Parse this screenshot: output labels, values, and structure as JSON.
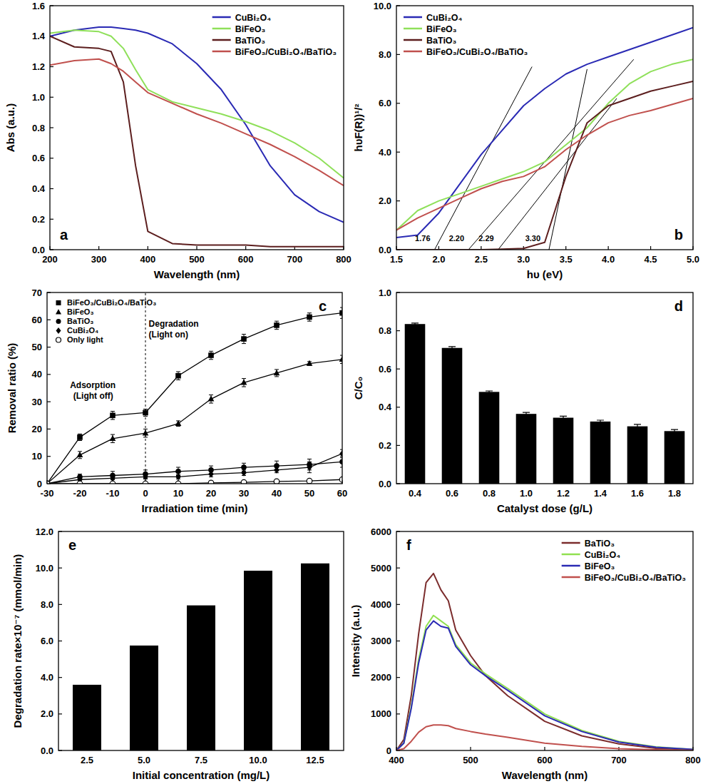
{
  "chart_data": [
    {
      "type": "line",
      "title": "a",
      "x_label": "Wavelength (nm)",
      "y_label": "Abs (a.u.)",
      "x": [
        200,
        250,
        300,
        325,
        350,
        375,
        400,
        450,
        500,
        550,
        600,
        650,
        700,
        750,
        800
      ],
      "series": [
        {
          "name": "CuBi₂O₄",
          "color": "#2a2ab4",
          "values": [
            1.4,
            1.44,
            1.46,
            1.46,
            1.45,
            1.44,
            1.42,
            1.35,
            1.22,
            1.05,
            0.82,
            0.55,
            0.36,
            0.25,
            0.18
          ]
        },
        {
          "name": "BiFeO₃",
          "color": "#8fe05a",
          "values": [
            1.42,
            1.44,
            1.43,
            1.4,
            1.32,
            1.18,
            1.05,
            0.97,
            0.93,
            0.89,
            0.84,
            0.78,
            0.7,
            0.6,
            0.47
          ]
        },
        {
          "name": "BaTiO₃",
          "color": "#5c1e1e",
          "values": [
            1.4,
            1.33,
            1.32,
            1.3,
            1.1,
            0.55,
            0.12,
            0.04,
            0.03,
            0.03,
            0.03,
            0.02,
            0.02,
            0.02,
            0.02
          ]
        },
        {
          "name": "BiFeO₃/CuBi₂O₄/BaTiO₃",
          "color": "#c0504d",
          "values": [
            1.21,
            1.24,
            1.25,
            1.22,
            1.17,
            1.1,
            1.03,
            0.96,
            0.89,
            0.83,
            0.76,
            0.69,
            0.61,
            0.52,
            0.42
          ]
        }
      ],
      "xlim": [
        200,
        800
      ],
      "xticks": [
        200,
        300,
        400,
        500,
        600,
        700,
        800
      ],
      "ylim": [
        0,
        1.6
      ],
      "yticks": [
        {
          "value": 0,
          "label": "0.0"
        },
        0.2,
        0.4,
        0.6,
        0.8,
        {
          "value": 1,
          "label": "1.0"
        },
        1.2,
        1.4,
        1.6
      ],
      "legend": "upper right",
      "grid": false
    },
    {
      "type": "line",
      "title": "b",
      "x_label": "hυ (eV)",
      "y_label": "hυF(R))¹/²",
      "x": [
        1.5,
        1.75,
        2.0,
        2.25,
        2.5,
        2.75,
        3.0,
        3.25,
        3.5,
        3.75,
        4.0,
        4.25,
        4.5,
        4.75,
        5.0
      ],
      "series": [
        {
          "name": "CuBi₂O₄",
          "color": "#2a2ab4",
          "values": [
            0.5,
            0.6,
            1.5,
            2.7,
            3.9,
            4.9,
            5.9,
            6.6,
            7.2,
            7.6,
            7.9,
            8.2,
            8.5,
            8.8,
            9.1
          ]
        },
        {
          "name": "BiFeO₃",
          "color": "#8fe05a",
          "values": [
            0.8,
            1.6,
            2.0,
            2.3,
            2.6,
            2.9,
            3.2,
            3.6,
            4.3,
            5.0,
            6.0,
            6.8,
            7.3,
            7.6,
            7.8
          ]
        },
        {
          "name": "BaTiO₃",
          "color": "#5c1e1e",
          "values": [
            0,
            0,
            0,
            0,
            0,
            0.02,
            0.05,
            0.3,
            3.0,
            5.2,
            5.9,
            6.2,
            6.5,
            6.7,
            6.9
          ]
        },
        {
          "name": "BiFeO₃/CuBi₂O₄/BaTiO₃",
          "color": "#c0504d",
          "values": [
            0.8,
            1.3,
            1.7,
            2.1,
            2.5,
            2.8,
            3.0,
            3.4,
            4.1,
            4.7,
            5.2,
            5.5,
            5.7,
            5.95,
            6.2
          ]
        }
      ],
      "tangent_lines": [
        {
          "x": [
            1.95,
            3.1
          ],
          "y": [
            0,
            7.5
          ]
        },
        {
          "x": [
            2.35,
            4.3
          ],
          "y": [
            0,
            7.8
          ]
        },
        {
          "x": [
            2.7,
            4.1
          ],
          "y": [
            0,
            6.2
          ]
        },
        {
          "x": [
            3.3,
            3.75
          ],
          "y": [
            0,
            7.4
          ]
        }
      ],
      "annotations": [
        {
          "text": "1.76",
          "x": 1.9,
          "y": 0.35
        },
        {
          "text": "2.20",
          "x": 2.3,
          "y": 0.35
        },
        {
          "text": "2.29",
          "x": 2.65,
          "y": 0.35
        },
        {
          "text": "3.30",
          "x": 3.2,
          "y": 0.35
        }
      ],
      "xlim": [
        1.5,
        5.0
      ],
      "xticks": [
        1.5,
        {
          "value": 2,
          "label": "2.0"
        },
        2.5,
        {
          "value": 3,
          "label": "3.0"
        },
        3.5,
        {
          "value": 4,
          "label": "4.0"
        },
        4.5,
        {
          "value": 5,
          "label": "5.0"
        }
      ],
      "ylim": [
        0,
        10
      ],
      "yticks": [
        {
          "value": 0,
          "label": "0.0"
        },
        {
          "value": 2,
          "label": "2.0"
        },
        {
          "value": 4,
          "label": "4.0"
        },
        {
          "value": 6,
          "label": "6.0"
        },
        {
          "value": 8,
          "label": "8.0"
        },
        {
          "value": 10,
          "label": "10.0"
        }
      ],
      "legend": "upper left",
      "grid": false
    },
    {
      "type": "line",
      "title": "c",
      "x_label": "Irradiation time (min)",
      "y_label": "Removal ratio (%)",
      "x": [
        -30,
        -20,
        -10,
        0,
        10,
        20,
        30,
        40,
        50,
        60
      ],
      "series": [
        {
          "name": "BiFeO₃/CuBi₂O₄/BaTiO₃",
          "color": "#000000",
          "marker": "square",
          "values": [
            0,
            17,
            25,
            26,
            39.5,
            47,
            53,
            58,
            61,
            62.5
          ],
          "errors": [
            0,
            1.2,
            1.5,
            1.3,
            1.5,
            1.5,
            1.7,
            1.5,
            1.5,
            2.0
          ]
        },
        {
          "name": "BiFeO₃",
          "color": "#000000",
          "marker": "triangle",
          "values": [
            0,
            10.5,
            16.5,
            18.5,
            22,
            31,
            37,
            40.5,
            44,
            45.5
          ],
          "errors": [
            0,
            1.3,
            1.5,
            1.5,
            1.0,
            1.5,
            1.5,
            1.3,
            0.7,
            1.5
          ]
        },
        {
          "name": "BaTiO₃",
          "color": "#000000",
          "marker": "circle",
          "values": [
            0,
            2.5,
            3,
            3.5,
            4.5,
            5,
            6,
            6.5,
            7,
            8
          ],
          "errors": [
            0,
            1.0,
            1.5,
            1.5,
            1.5,
            1.5,
            1.5,
            1.8,
            2.0,
            2.0
          ]
        },
        {
          "name": "CuBi₂O₄",
          "color": "#000000",
          "marker": "diamond",
          "values": [
            0,
            1.5,
            2,
            2.5,
            2.5,
            3.5,
            4,
            5,
            6,
            11
          ],
          "errors": [
            0,
            0.5,
            0.5,
            0.8,
            0.8,
            1.0,
            1.0,
            1.0,
            2.0,
            1.5
          ]
        },
        {
          "name": "Only light",
          "color": "#000000",
          "marker": "circle-open",
          "values": [
            0,
            0,
            0,
            0,
            0,
            0.3,
            0.5,
            0.8,
            1,
            1.5
          ],
          "errors": [
            0,
            0,
            0,
            0,
            0,
            0.2,
            0.2,
            0.3,
            0.3,
            0.4
          ]
        }
      ],
      "annotations": [
        {
          "text": "Adsorption",
          "x": -23,
          "y": 35
        },
        {
          "text": "(Light off)",
          "x": -22,
          "y": 31
        },
        {
          "text": "Degradation",
          "x": 1,
          "y": 57.5
        },
        {
          "text": "(Light on)",
          "x": 1,
          "y": 53.5
        }
      ],
      "vlines": [
        0
      ],
      "xlim": [
        -30,
        60
      ],
      "xticks": [
        -30,
        -20,
        -10,
        0,
        10,
        20,
        30,
        40,
        50,
        60
      ],
      "ylim": [
        0,
        70
      ],
      "yticks": [
        0,
        10,
        20,
        30,
        40,
        50,
        60,
        70
      ],
      "legend": "upper left",
      "grid": false
    },
    {
      "type": "bar",
      "title": "d",
      "x_label": "Catalyst dose (g/L)",
      "y_label": "C/C₀",
      "categories": [
        "0.4",
        "0.6",
        "0.8",
        "1.0",
        "1.2",
        "1.4",
        "1.6",
        "1.8"
      ],
      "values": [
        0.835,
        0.71,
        0.48,
        0.365,
        0.345,
        0.325,
        0.3,
        0.275
      ],
      "errors": [
        0.005,
        0.007,
        0.005,
        0.008,
        0.008,
        0.007,
        0.01,
        0.008
      ],
      "color": "#000000",
      "ylim": [
        0,
        1.0
      ],
      "yticks": [
        {
          "value": 0,
          "label": "0.0"
        },
        0.2,
        0.4,
        0.6,
        0.8,
        {
          "value": 1,
          "label": "1.0"
        }
      ],
      "grid": false
    },
    {
      "type": "bar",
      "title": "e",
      "x_label": "Initial concentration (mg/L)",
      "y_label": "Degradation rate×10⁻⁷ (mmol/min)",
      "categories": [
        "2.5",
        "5.0",
        "7.5",
        "10.0",
        "12.5"
      ],
      "values": [
        3.6,
        5.75,
        7.95,
        9.85,
        10.25
      ],
      "color": "#000000",
      "ylim": [
        0,
        12
      ],
      "yticks": [
        {
          "value": 0,
          "label": "0.0"
        },
        {
          "value": 2,
          "label": "2.0"
        },
        {
          "value": 4,
          "label": "4.0"
        },
        {
          "value": 6,
          "label": "6.0"
        },
        {
          "value": 8,
          "label": "8.0"
        },
        {
          "value": 10,
          "label": "10.0"
        },
        {
          "value": 12,
          "label": "12.0"
        }
      ],
      "grid": false
    },
    {
      "type": "line",
      "title": "f",
      "x_label": "Wavelength (nm)",
      "y_label": "Intensity (a.u.)",
      "x": [
        400,
        410,
        420,
        430,
        440,
        450,
        460,
        470,
        480,
        500,
        520,
        550,
        600,
        650,
        700,
        750,
        800
      ],
      "series": [
        {
          "name": "BaTiO₃",
          "color": "#7b2c2c",
          "values": [
            0,
            300,
            1500,
            3200,
            4600,
            4850,
            4400,
            4100,
            3300,
            2600,
            2050,
            1500,
            800,
            400,
            180,
            60,
            20
          ]
        },
        {
          "name": "CuBi₂O₄",
          "color": "#90e050",
          "values": [
            0,
            200,
            1200,
            2500,
            3400,
            3700,
            3550,
            3400,
            2900,
            2400,
            2100,
            1700,
            1000,
            550,
            250,
            100,
            30
          ]
        },
        {
          "name": "BiFeO₃",
          "color": "#2a2ab4",
          "values": [
            0,
            200,
            1150,
            2400,
            3300,
            3550,
            3400,
            3350,
            2850,
            2350,
            2050,
            1650,
            950,
            520,
            230,
            90,
            30
          ]
        },
        {
          "name": "BiFeO₃/CuBi₂O₄/BaTiO₃",
          "color": "#c0504d",
          "values": [
            0,
            50,
            250,
            500,
            650,
            700,
            700,
            680,
            600,
            520,
            450,
            360,
            200,
            110,
            50,
            20,
            5
          ]
        }
      ],
      "xlim": [
        400,
        800
      ],
      "xticks": [
        400,
        500,
        600,
        700,
        800
      ],
      "ylim": [
        0,
        6000
      ],
      "yticks": [
        0,
        1000,
        2000,
        3000,
        4000,
        5000,
        6000
      ],
      "legend": "upper right",
      "grid": false
    }
  ]
}
